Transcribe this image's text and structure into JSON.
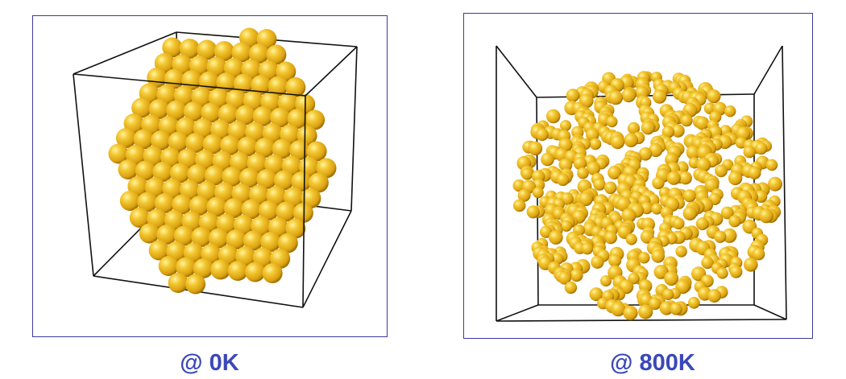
{
  "panels": [
    {
      "caption": "@ 0K",
      "state": "crystalline cluster"
    },
    {
      "caption": "@ 800K",
      "state": "disordered cluster"
    }
  ],
  "colors": {
    "atom": "#e8b81c",
    "atom_highlight": "#fff3a0",
    "atom_shadow": "#9c6c00",
    "box_edge": "#111111",
    "frame": "#3a3aa0",
    "caption": "#3a48b8"
  }
}
